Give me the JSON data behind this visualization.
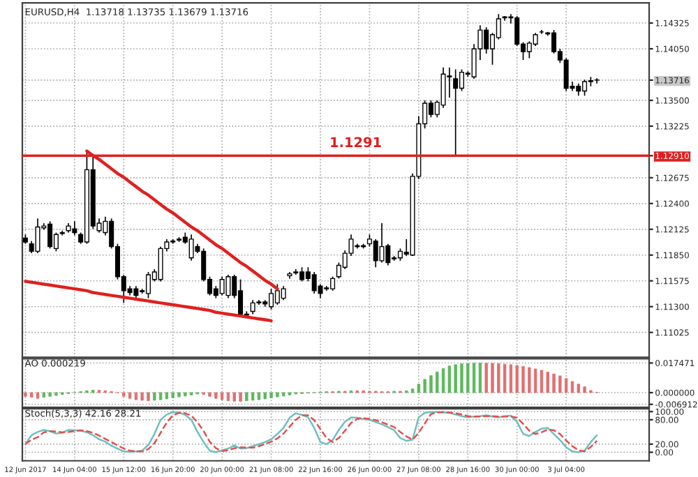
{
  "chart_data": [
    {
      "type": "candlestick",
      "title": "EURUSD,H4  1.13718 1.13735 1.13679 1.13716",
      "categories": [
        null,
        null,
        null,
        null,
        null,
        null,
        null,
        null,
        null,
        null,
        null,
        null,
        null,
        null,
        null,
        null,
        null,
        null,
        null,
        null,
        null,
        null,
        null,
        null,
        null,
        null,
        null,
        null,
        null,
        null,
        null,
        null,
        null,
        null,
        null,
        null,
        null,
        null,
        null,
        null,
        null,
        null,
        null,
        null,
        null,
        null,
        null,
        null,
        null,
        null,
        null,
        null,
        null,
        null,
        null,
        null,
        null,
        null,
        null,
        null,
        null,
        null,
        null,
        null,
        null,
        null,
        null,
        null,
        null,
        null,
        null,
        null,
        null,
        null,
        null,
        null,
        null,
        null,
        null,
        null,
        null,
        null,
        null,
        null,
        null,
        null,
        null,
        null,
        null,
        null,
        null,
        null,
        null,
        null,
        null,
        null,
        null,
        null,
        null,
        null,
        null,
        null
      ],
      "ohlc": [
        [
          1.1203,
          1.1207,
          1.1197,
          1.1199
        ],
        [
          1.1197,
          1.12,
          1.1187,
          1.1189
        ],
        [
          1.1189,
          1.1224,
          1.1187,
          1.1215
        ],
        [
          1.1214,
          1.1219,
          1.1212,
          1.1216
        ],
        [
          1.1218,
          1.1221,
          1.1192,
          1.1194
        ],
        [
          1.1192,
          1.1209,
          1.1189,
          1.1207
        ],
        [
          1.1209,
          1.1211,
          1.1206,
          1.1208
        ],
        [
          1.1211,
          1.1219,
          1.1209,
          1.1216
        ],
        [
          1.1213,
          1.1221,
          1.1206,
          1.1209
        ],
        [
          1.1207,
          1.1209,
          1.1197,
          1.1199
        ],
        [
          1.1199,
          1.1296,
          1.1197,
          1.1276
        ],
        [
          1.1276,
          1.1293,
          1.1213,
          1.1216
        ],
        [
          1.1211,
          1.1224,
          1.1209,
          1.1219
        ],
        [
          1.1209,
          1.1226,
          1.1206,
          1.1221
        ],
        [
          1.1221,
          1.1224,
          1.1192,
          1.1194
        ],
        [
          1.1194,
          1.1197,
          1.1159,
          1.1162
        ],
        [
          1.1162,
          1.1164,
          1.1134,
          1.1147
        ],
        [
          1.1149,
          1.1152,
          1.1142,
          1.1145
        ],
        [
          1.1149,
          1.1152,
          1.1139,
          1.1142
        ],
        [
          1.1146,
          1.1149,
          1.1144,
          1.1147
        ],
        [
          1.1144,
          1.1167,
          1.1139,
          1.1164
        ],
        [
          1.1159,
          1.117,
          1.1157,
          1.1167
        ],
        [
          1.1159,
          1.1194,
          1.1157,
          1.1192
        ],
        [
          1.1192,
          1.1202,
          1.1189,
          1.1199
        ],
        [
          1.1199,
          1.1202,
          1.1197,
          1.12
        ],
        [
          1.1202,
          1.1204,
          1.1199,
          1.1201
        ],
        [
          1.1204,
          1.1209,
          1.1197,
          1.1199
        ],
        [
          1.1182,
          1.1207,
          1.1179,
          1.1202
        ],
        [
          1.1194,
          1.1197,
          1.1187,
          1.1189
        ],
        [
          1.1189,
          1.1192,
          1.1157,
          1.1159
        ],
        [
          1.1159,
          1.1162,
          1.1142,
          1.1144
        ],
        [
          1.1149,
          1.1152,
          1.1139,
          1.1142
        ],
        [
          1.1144,
          1.1162,
          1.1142,
          1.1159
        ],
        [
          1.1142,
          1.1164,
          1.1139,
          1.1162
        ],
        [
          1.1162,
          1.1164,
          1.1139,
          1.1142
        ],
        [
          1.1147,
          1.1159,
          1.112,
          1.1122
        ],
        [
          1.1121,
          1.1125,
          1.1119,
          1.1122
        ],
        [
          1.1125,
          1.1137,
          1.1122,
          1.1134
        ],
        [
          1.1134,
          1.1137,
          1.1132,
          1.1135
        ],
        [
          1.1135,
          1.1137,
          1.113,
          1.1133
        ],
        [
          1.113,
          1.1149,
          1.1127,
          1.1144
        ],
        [
          1.1134,
          1.1154,
          1.1132,
          1.1147
        ],
        [
          1.1139,
          1.1152,
          1.1137,
          1.1149
        ],
        [
          1.1163,
          1.1167,
          1.116,
          1.1165
        ],
        [
          1.1166,
          1.117,
          1.1164,
          1.1167
        ],
        [
          1.1167,
          1.1172,
          1.1157,
          1.1159
        ],
        [
          1.1167,
          1.1172,
          1.1157,
          1.116
        ],
        [
          1.1164,
          1.1167,
          1.1144,
          1.1147
        ],
        [
          1.1152,
          1.1154,
          1.1139,
          1.1144
        ],
        [
          1.1149,
          1.1152,
          1.1147,
          1.115
        ],
        [
          1.1149,
          1.1162,
          1.1147,
          1.116
        ],
        [
          1.1162,
          1.1177,
          1.116,
          1.1174
        ],
        [
          1.1172,
          1.119,
          1.117,
          1.1187
        ],
        [
          1.1187,
          1.1207,
          1.1184,
          1.1202
        ],
        [
          1.1194,
          1.1197,
          1.1192,
          1.1195
        ],
        [
          1.1195,
          1.1197,
          1.1192,
          1.1194
        ],
        [
          1.1197,
          1.1207,
          1.1194,
          1.1202
        ],
        [
          1.12,
          1.1202,
          1.1172,
          1.1179
        ],
        [
          1.1179,
          1.1219,
          1.1177,
          1.1194
        ],
        [
          1.1195,
          1.1197,
          1.1174,
          1.1177
        ],
        [
          1.1181,
          1.1184,
          1.1179,
          1.1182
        ],
        [
          1.1182,
          1.1192,
          1.1179,
          1.1189
        ],
        [
          1.1188,
          1.1202,
          1.1184,
          1.1186
        ],
        [
          1.1185,
          1.1272,
          1.1184,
          1.1269
        ],
        [
          1.1269,
          1.1333,
          1.1266,
          1.1325
        ],
        [
          1.1325,
          1.135,
          1.132,
          1.1347
        ],
        [
          1.1347,
          1.135,
          1.1332,
          1.1335
        ],
        [
          1.1335,
          1.135,
          1.1332,
          1.1348
        ],
        [
          1.1345,
          1.1385,
          1.1342,
          1.1378
        ],
        [
          1.1376,
          1.1385,
          1.1353,
          1.1375
        ],
        [
          1.1373,
          1.1383,
          1.1291,
          1.1363
        ],
        [
          1.1363,
          1.1383,
          1.136,
          1.138
        ],
        [
          1.1378,
          1.1381,
          1.1375,
          1.1379
        ],
        [
          1.1375,
          1.141,
          1.1373,
          1.1405
        ],
        [
          1.1405,
          1.143,
          1.1393,
          1.1425
        ],
        [
          1.1425,
          1.1428,
          1.14,
          1.1405
        ],
        [
          1.1405,
          1.1422,
          1.1388,
          1.142
        ],
        [
          1.1417,
          1.1442,
          1.1415,
          1.1437
        ],
        [
          1.1438,
          1.144,
          1.1435,
          1.1439
        ],
        [
          1.1439,
          1.1442,
          1.1432,
          1.1438
        ],
        [
          1.1438,
          1.144,
          1.1408,
          1.141
        ],
        [
          1.141,
          1.1412,
          1.1393,
          1.1402
        ],
        [
          1.1402,
          1.1413,
          1.1395,
          1.1411
        ],
        [
          1.141,
          1.1422,
          1.1408,
          1.142
        ],
        [
          1.1423,
          1.1425,
          1.1421,
          1.1423
        ],
        [
          1.1422,
          1.1423,
          1.1419,
          1.1421
        ],
        [
          1.1422,
          1.1425,
          1.14,
          1.1402
        ],
        [
          1.1402,
          1.1405,
          1.139,
          1.1393
        ],
        [
          1.1393,
          1.1395,
          1.136,
          1.1363
        ],
        [
          1.1365,
          1.137,
          1.136,
          1.1363
        ],
        [
          1.1365,
          1.1368,
          1.1355,
          1.136
        ],
        [
          1.136,
          1.1372,
          1.1355,
          1.137
        ],
        [
          1.137,
          1.1375,
          1.1365,
          1.1371
        ],
        [
          1.13718,
          1.13735,
          1.13679,
          1.13716
        ],
        null,
        null,
        null,
        null,
        null,
        null,
        null,
        null
      ],
      "series": [
        {
          "type": "line",
          "color": "#e02020",
          "values": [
            null,
            null,
            null,
            null,
            null,
            null,
            null,
            null,
            null,
            null,
            1.1296,
            1.1291,
            1.1287,
            1.1282,
            1.1277,
            1.1272,
            1.1268,
            1.1263,
            1.1258,
            1.1253,
            1.1249,
            1.1244,
            1.1239,
            1.1234,
            1.123,
            1.1225,
            1.122,
            1.1215,
            1.1211,
            1.1206,
            1.1201,
            1.1196,
            1.1192,
            1.1187,
            1.1182,
            1.1177,
            1.1173,
            1.1168,
            1.1163,
            1.1158,
            1.1154,
            1.1149,
            null,
            null,
            null,
            null,
            null,
            null,
            null,
            null,
            null,
            null,
            null,
            null,
            null,
            null,
            null,
            null,
            null,
            null,
            null,
            null,
            null,
            null,
            null,
            null,
            null,
            null,
            null,
            null,
            null,
            null,
            null,
            null,
            null,
            null,
            null,
            null,
            null,
            null,
            null,
            null,
            null,
            null,
            null,
            null,
            null,
            null,
            null,
            null,
            null,
            null,
            null,
            null,
            null,
            null,
            null,
            null,
            null,
            null,
            null,
            null
          ]
        },
        {
          "type": "line",
          "color": "#e02020",
          "values": [
            1.1157,
            1.1156,
            1.1155,
            1.1154,
            1.1153,
            1.1152,
            1.1151,
            1.115,
            1.1149,
            1.1148,
            1.1147,
            1.1145,
            1.1144,
            1.1143,
            1.1142,
            1.1141,
            1.114,
            1.1139,
            1.1138,
            1.1137,
            1.1136,
            1.1135,
            1.1134,
            1.1133,
            1.1132,
            1.1131,
            1.113,
            1.1129,
            1.1128,
            1.1127,
            1.1126,
            1.1124,
            1.1123,
            1.1122,
            1.1121,
            1.112,
            1.1119,
            1.1118,
            1.1117,
            1.1116,
            1.1115,
            null,
            null,
            null,
            null,
            null,
            null,
            null,
            null,
            null,
            null,
            null,
            null,
            null,
            null,
            null,
            null,
            null,
            null,
            null,
            null,
            null,
            null,
            null,
            null,
            null,
            null,
            null,
            null,
            null,
            null,
            null,
            null,
            null,
            null,
            null,
            null,
            null,
            null,
            null,
            null,
            null,
            null,
            null,
            null,
            null,
            null,
            null,
            null,
            null,
            null,
            null,
            null,
            null,
            null,
            null,
            null,
            null,
            null,
            null,
            null,
            null
          ]
        }
      ],
      "ref_lines": [
        {
          "axis": "y",
          "value": 1.1291,
          "label": "1.1291",
          "color": "#e02020"
        }
      ],
      "ylim": [
        1.1076,
        1.1454
      ],
      "yticks": [
        {
          "value": 1.11025,
          "label": "1.11025"
        },
        {
          "value": 1.113,
          "label": "1.11300"
        },
        {
          "value": 1.11575,
          "label": "1.11575"
        },
        {
          "value": 1.1185,
          "label": "1.11850"
        },
        {
          "value": 1.12125,
          "label": "1.12125"
        },
        {
          "value": 1.124,
          "label": "1.12400"
        },
        {
          "value": 1.12675,
          "label": "1.12675"
        },
        {
          "value": 1.1291,
          "label": "1.12910"
        },
        {
          "value": 1.13225,
          "label": "1.13225"
        },
        {
          "value": 1.135,
          "label": "1.13500"
        },
        {
          "value": 1.13716,
          "label": "1.13716"
        },
        {
          "value": 1.1405,
          "label": "1.14050"
        },
        {
          "value": 1.14325,
          "label": "1.14325"
        }
      ],
      "grid": true,
      "tick_labels": "y"
    },
    {
      "type": "bar",
      "title": "AO 0.000219",
      "categories": [
        null,
        null,
        null,
        null,
        null,
        null,
        null,
        null,
        null,
        null,
        null,
        null,
        null,
        null,
        null,
        null,
        null,
        null,
        null,
        null,
        null,
        null,
        null,
        null,
        null,
        null,
        null,
        null,
        null,
        null,
        null,
        null,
        null,
        null,
        null,
        null,
        null,
        null,
        null,
        null,
        null,
        null,
        null,
        null,
        null,
        null,
        null,
        null,
        null,
        null,
        null,
        null,
        null,
        null,
        null,
        null,
        null,
        null,
        null,
        null,
        null,
        null,
        null,
        null,
        null,
        null,
        null,
        null,
        null,
        null,
        null,
        null,
        null,
        null,
        null,
        null,
        null,
        null,
        null,
        null,
        null,
        null,
        null,
        null,
        null,
        null,
        null,
        null,
        null,
        null,
        null,
        null,
        null,
        null,
        null,
        null,
        null,
        null,
        null,
        null,
        null,
        null
      ],
      "values": [
        -0.0022,
        -0.0028,
        -0.0034,
        -0.0028,
        -0.0022,
        -0.0017,
        -0.0011,
        -0.0006,
        0,
        0.0006,
        0.0011,
        0.0014,
        0.0014,
        0.0011,
        0.0006,
        0,
        -0.0022,
        -0.0034,
        -0.0042,
        -0.0045,
        -0.0048,
        -0.0045,
        -0.0042,
        -0.0037,
        -0.0031,
        -0.0025,
        -0.002,
        -0.0014,
        -0.0008,
        -0.0011,
        -0.0022,
        -0.0034,
        -0.0042,
        -0.0048,
        -0.0051,
        -0.0051,
        -0.0048,
        -0.0045,
        -0.0042,
        -0.0037,
        -0.0031,
        -0.0025,
        -0.002,
        -0.0014,
        -0.0008,
        -0.0006,
        -0.0003,
        0,
        0.0003,
        0.0006,
        0.0006,
        0.0008,
        0.0008,
        0.0011,
        0.0011,
        0.0011,
        0.0008,
        0.0008,
        0.0006,
        0.0006,
        0.0008,
        0.0008,
        0.0011,
        0.0022,
        0.005,
        0.0078,
        0.01,
        0.0122,
        0.0142,
        0.0157,
        0.0165,
        0.017,
        0.0172,
        0.0174,
        0.0175,
        0.0174,
        0.0173,
        0.0171,
        0.0168,
        0.0165,
        0.016,
        0.0154,
        0.0148,
        0.014,
        0.0132,
        0.0121,
        0.011,
        0.0099,
        0.0083,
        0.0066,
        0.005,
        0.0034,
        0.0012,
        0.0002,
        null,
        null,
        null,
        null,
        null,
        null,
        null,
        null
      ],
      "colors": [
        "#e07070",
        "#e07070",
        "#e07070",
        "#5cb85c",
        "#5cb85c",
        "#5cb85c",
        "#5cb85c",
        "#5cb85c",
        "#5cb85c",
        "#5cb85c",
        "#5cb85c",
        "#5cb85c",
        "#e07070",
        "#e07070",
        "#e07070",
        "#e07070",
        "#e07070",
        "#e07070",
        "#e07070",
        "#e07070",
        "#e07070",
        "#5cb85c",
        "#5cb85c",
        "#5cb85c",
        "#5cb85c",
        "#5cb85c",
        "#5cb85c",
        "#5cb85c",
        "#5cb85c",
        "#e07070",
        "#e07070",
        "#e07070",
        "#e07070",
        "#e07070",
        "#e07070",
        "#e07070",
        "#5cb85c",
        "#5cb85c",
        "#5cb85c",
        "#5cb85c",
        "#5cb85c",
        "#5cb85c",
        "#5cb85c",
        "#5cb85c",
        "#5cb85c",
        "#5cb85c",
        "#5cb85c",
        "#5cb85c",
        "#5cb85c",
        "#5cb85c",
        "#e07070",
        "#5cb85c",
        "#e07070",
        "#5cb85c",
        "#e07070",
        "#e07070",
        "#e07070",
        "#e07070",
        "#e07070",
        "#e07070",
        "#5cb85c",
        "#e07070",
        "#5cb85c",
        "#5cb85c",
        "#5cb85c",
        "#5cb85c",
        "#5cb85c",
        "#5cb85c",
        "#5cb85c",
        "#5cb85c",
        "#5cb85c",
        "#5cb85c",
        "#5cb85c",
        "#5cb85c",
        "#5cb85c",
        "#e07070",
        "#e07070",
        "#e07070",
        "#e07070",
        "#e07070",
        "#e07070",
        "#e07070",
        "#e07070",
        "#e07070",
        "#e07070",
        "#e07070",
        "#e07070",
        "#e07070",
        "#e07070",
        "#e07070",
        "#e07070",
        "#e07070",
        "#e07070",
        "#e07070",
        null,
        null,
        null,
        null,
        null,
        null,
        null,
        null
      ],
      "ylim": [
        -0.0087,
        0.02
      ],
      "yticks": [
        {
          "value": 0.017471,
          "label": "0.017471"
        },
        {
          "value": 0,
          "label": "0.000000"
        },
        {
          "value": -0.006912,
          "label": "-0.006912"
        }
      ],
      "grid": true,
      "tick_labels": "y"
    },
    {
      "type": "line",
      "title": "Stoch(5,3,3) 42.16 28.21",
      "categories": [
        "12 Jun 2017",
        null,
        null,
        null,
        null,
        null,
        null,
        null,
        "14 Jun 04:00",
        null,
        null,
        null,
        null,
        null,
        null,
        null,
        "15 Jun 12:00",
        null,
        null,
        null,
        null,
        null,
        null,
        null,
        "16 Jun 20:00",
        null,
        null,
        null,
        null,
        null,
        null,
        null,
        "20 Jun 00:00",
        null,
        null,
        null,
        null,
        null,
        null,
        null,
        "21 Jun 08:00",
        null,
        null,
        null,
        null,
        null,
        null,
        null,
        "22 Jun 16:00",
        null,
        null,
        null,
        null,
        null,
        null,
        null,
        "26 Jun 00:00",
        null,
        null,
        null,
        null,
        null,
        null,
        null,
        "27 Jun 08:00",
        null,
        null,
        null,
        null,
        null,
        null,
        null,
        "28 Jun 16:00",
        null,
        null,
        null,
        null,
        null,
        null,
        null,
        "30 Jun 00:00",
        null,
        null,
        null,
        null,
        null,
        null,
        null,
        "3 Jul 04:00",
        null,
        null,
        null,
        null,
        null,
        null,
        null,
        null,
        null,
        null,
        null,
        null,
        null
      ],
      "series": [
        {
          "color": "#6fbfbf",
          "line_style": "solid",
          "values": [
            20,
            42,
            50,
            55,
            52,
            46,
            48,
            55,
            54,
            53,
            49,
            42,
            32,
            26,
            16,
            9,
            2,
            1,
            2,
            4,
            18,
            45,
            80,
            93,
            99,
            98,
            92,
            80,
            50,
            25,
            4,
            0,
            5,
            9,
            17,
            9,
            10,
            15,
            20,
            25,
            32,
            45,
            60,
            85,
            96,
            92,
            86,
            60,
            25,
            20,
            30,
            55,
            75,
            86,
            85,
            82,
            80,
            74,
            69,
            62,
            54,
            35,
            28,
            31,
            86,
            97,
            99,
            99,
            98,
            97,
            93,
            89,
            86,
            88,
            89,
            91,
            88,
            86,
            89,
            90,
            75,
            45,
            40,
            50,
            58,
            60,
            45,
            30,
            12,
            2,
            0,
            4,
            25,
            42.16,
            null,
            null,
            null,
            null,
            null,
            null,
            null,
            null
          ]
        },
        {
          "color": "#e05050",
          "line_style": "dashed",
          "values": [
            20,
            31,
            37,
            49,
            52,
            51,
            49,
            50,
            52,
            54,
            52,
            48,
            41,
            33,
            25,
            17,
            9,
            4,
            2,
            2,
            8,
            22,
            48,
            73,
            91,
            97,
            96,
            90,
            74,
            52,
            26,
            10,
            3,
            5,
            10,
            12,
            12,
            11,
            15,
            20,
            26,
            34,
            46,
            63,
            80,
            91,
            91,
            79,
            57,
            35,
            25,
            35,
            53,
            72,
            82,
            84,
            82,
            79,
            74,
            68,
            62,
            50,
            39,
            31,
            48,
            71,
            94,
            98,
            99,
            98,
            96,
            93,
            89,
            88,
            88,
            89,
            89,
            88,
            88,
            88,
            85,
            70,
            53,
            45,
            49,
            56,
            54,
            45,
            29,
            15,
            5,
            2,
            13,
            28.21,
            null,
            null,
            null,
            null,
            null,
            null,
            null,
            null
          ]
        }
      ],
      "ylim": [
        -21,
        107
      ],
      "yticks": [
        {
          "value": 100,
          "label": "100.00"
        },
        {
          "value": 80,
          "label": "80.00"
        },
        {
          "value": 20,
          "label": "20.00"
        },
        {
          "value": 0,
          "label": "0.00"
        }
      ],
      "grid": true
    }
  ]
}
